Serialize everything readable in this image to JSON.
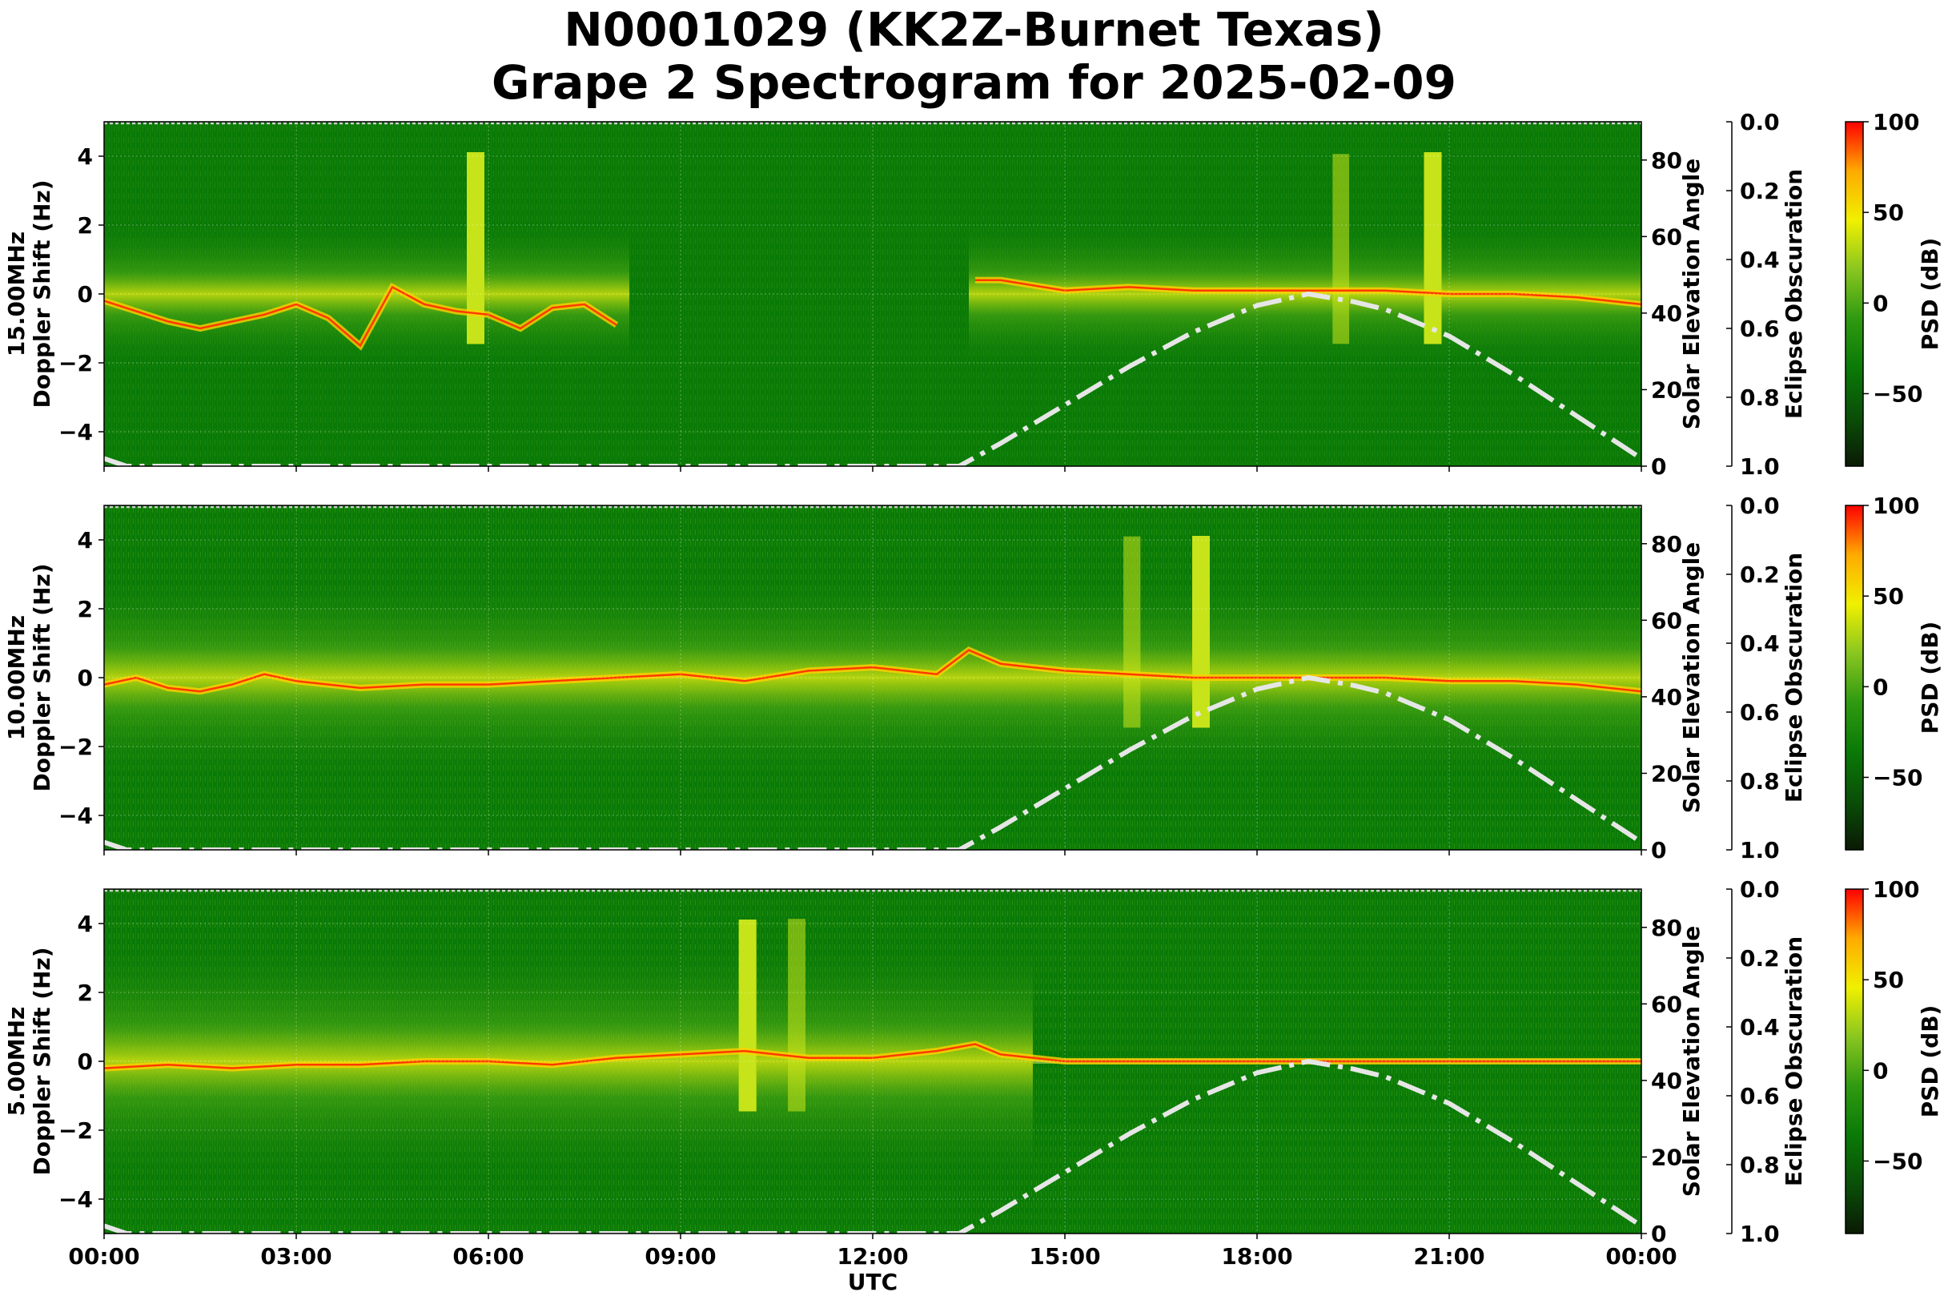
{
  "title": {
    "line1": "N0001029 (KK2Z-Burnet Texas)",
    "line2": "Grape 2 Spectrogram for 2025-02-09"
  },
  "colors": {
    "colormap": [
      "#0a1a05",
      "#0a4f07",
      "#0a7a07",
      "#2f9a10",
      "#8ac620",
      "#f0f000",
      "#ffaa00",
      "#ff0000"
    ],
    "solar_curve": "#e6e6e6"
  },
  "chart_data": [
    {
      "type": "heatmap",
      "ylabel_line1": "15.00MHz",
      "ylabel_line2": "Doppler Shift (Hz)",
      "xlabel": "",
      "x_ticks": [
        "00:00",
        "03:00",
        "06:00",
        "09:00",
        "12:00",
        "15:00",
        "18:00",
        "21:00",
        "00:00"
      ],
      "x_range_hours": [
        0,
        24
      ],
      "ylim": [
        -5,
        5
      ],
      "y_ticks": [
        "−4",
        "−2",
        "0",
        "2",
        "4"
      ],
      "y2_label": "Solar Elevation Angle",
      "y2_lim": [
        0,
        90
      ],
      "y2_ticks": [
        "0",
        "20",
        "40",
        "60",
        "80"
      ],
      "y3_label": "Eclipse Obscuration",
      "y3_lim": [
        1.0,
        0.0
      ],
      "y3_ticks": [
        "0.0",
        "0.2",
        "0.4",
        "0.6",
        "0.8",
        "1.0"
      ],
      "colorbar_label": "PSD (dB)",
      "colorbar_range": [
        -90,
        100
      ],
      "colorbar_ticks": [
        "100",
        "50",
        "0",
        "−50"
      ],
      "doppler_trace": {
        "hours": [
          0,
          0.5,
          1,
          1.5,
          2,
          2.5,
          3,
          3.5,
          4,
          4.5,
          5,
          5.5,
          6,
          6.5,
          7,
          7.5,
          8
        ],
        "hz": [
          -0.2,
          -0.5,
          -0.8,
          -1.0,
          -0.8,
          -0.6,
          -0.3,
          -0.7,
          -1.5,
          0.2,
          -0.3,
          -0.5,
          -0.6,
          -1.0,
          -0.4,
          -0.3,
          -0.9
        ]
      },
      "doppler_trace2": {
        "hours": [
          13.6,
          14,
          15,
          16,
          17,
          18,
          19,
          20,
          21,
          22,
          23,
          24
        ],
        "hz": [
          0.4,
          0.4,
          0.1,
          0.2,
          0.1,
          0.1,
          0.1,
          0.1,
          0.0,
          0.0,
          -0.1,
          -0.3
        ]
      },
      "solar_elevation": {
        "hours": [
          0,
          0.35,
          13.35,
          14,
          15,
          16,
          17,
          18,
          18.8,
          19.5,
          20,
          21,
          22,
          23,
          24
        ],
        "deg": [
          2,
          0,
          0,
          6,
          16,
          26,
          35,
          42,
          45,
          43,
          41,
          34,
          24,
          13,
          2
        ]
      }
    },
    {
      "type": "heatmap",
      "ylabel_line1": "10.00MHz",
      "ylabel_line2": "Doppler Shift (Hz)",
      "xlabel": "",
      "x_ticks": [
        "00:00",
        "03:00",
        "06:00",
        "09:00",
        "12:00",
        "15:00",
        "18:00",
        "21:00",
        "00:00"
      ],
      "x_range_hours": [
        0,
        24
      ],
      "ylim": [
        -5,
        5
      ],
      "y_ticks": [
        "−4",
        "−2",
        "0",
        "2",
        "4"
      ],
      "y2_label": "Solar Elevation Angle",
      "y2_lim": [
        0,
        90
      ],
      "y2_ticks": [
        "0",
        "20",
        "40",
        "60",
        "80"
      ],
      "y3_label": "Eclipse Obscuration",
      "y3_lim": [
        1.0,
        0.0
      ],
      "y3_ticks": [
        "0.0",
        "0.2",
        "0.4",
        "0.6",
        "0.8",
        "1.0"
      ],
      "colorbar_label": "PSD (dB)",
      "colorbar_range": [
        -90,
        100
      ],
      "colorbar_ticks": [
        "100",
        "50",
        "0",
        "−50"
      ],
      "doppler_trace": {
        "hours": [
          0,
          0.5,
          1,
          1.5,
          2,
          2.5,
          3,
          4,
          5,
          6,
          7,
          8,
          9,
          10,
          11,
          12,
          13,
          13.5,
          14,
          15,
          16,
          17,
          18,
          19,
          20,
          21,
          22,
          23,
          24
        ],
        "hz": [
          -0.2,
          0.0,
          -0.3,
          -0.4,
          -0.2,
          0.1,
          -0.1,
          -0.3,
          -0.2,
          -0.2,
          -0.1,
          0.0,
          0.1,
          -0.1,
          0.2,
          0.3,
          0.1,
          0.8,
          0.4,
          0.2,
          0.1,
          0.0,
          0.0,
          0.0,
          0.0,
          -0.1,
          -0.1,
          -0.2,
          -0.4
        ]
      },
      "solar_elevation": {
        "hours": [
          0,
          0.35,
          13.35,
          14,
          15,
          16,
          17,
          18,
          18.8,
          19.5,
          20,
          21,
          22,
          23,
          24
        ],
        "deg": [
          2,
          0,
          0,
          6,
          16,
          26,
          35,
          42,
          45,
          43,
          41,
          34,
          24,
          13,
          2
        ]
      }
    },
    {
      "type": "heatmap",
      "ylabel_line1": "5.00MHz",
      "ylabel_line2": "Doppler Shift (Hz)",
      "xlabel": "UTC",
      "x_ticks": [
        "00:00",
        "03:00",
        "06:00",
        "09:00",
        "12:00",
        "15:00",
        "18:00",
        "21:00",
        "00:00"
      ],
      "x_range_hours": [
        0,
        24
      ],
      "ylim": [
        -5,
        5
      ],
      "y_ticks": [
        "−4",
        "−2",
        "0",
        "2",
        "4"
      ],
      "y2_label": "Solar Elevation Angle",
      "y2_lim": [
        0,
        90
      ],
      "y2_ticks": [
        "0",
        "20",
        "40",
        "60",
        "80"
      ],
      "y3_label": "Eclipse Obscuration",
      "y3_lim": [
        1.0,
        0.0
      ],
      "y3_ticks": [
        "0.0",
        "0.2",
        "0.4",
        "0.6",
        "0.8",
        "1.0"
      ],
      "colorbar_label": "PSD (dB)",
      "colorbar_range": [
        -90,
        100
      ],
      "colorbar_ticks": [
        "100",
        "50",
        "0",
        "−50"
      ],
      "doppler_trace": {
        "hours": [
          0,
          1,
          2,
          3,
          4,
          5,
          6,
          7,
          8,
          9,
          10,
          11,
          12,
          13,
          13.6,
          14,
          15,
          16,
          18,
          20,
          22,
          24
        ],
        "hz": [
          -0.2,
          -0.1,
          -0.2,
          -0.1,
          -0.1,
          0.0,
          0.0,
          -0.1,
          0.1,
          0.2,
          0.3,
          0.1,
          0.1,
          0.3,
          0.5,
          0.2,
          0.0,
          0.0,
          0.0,
          0.0,
          0.0,
          0.0
        ]
      },
      "solar_elevation": {
        "hours": [
          0,
          0.35,
          13.35,
          14,
          15,
          16,
          17,
          18,
          18.8,
          19.5,
          20,
          21,
          22,
          23,
          24
        ],
        "deg": [
          2,
          0,
          0,
          6,
          16,
          26,
          35,
          42,
          45,
          43,
          41,
          34,
          24,
          13,
          2
        ]
      }
    }
  ]
}
